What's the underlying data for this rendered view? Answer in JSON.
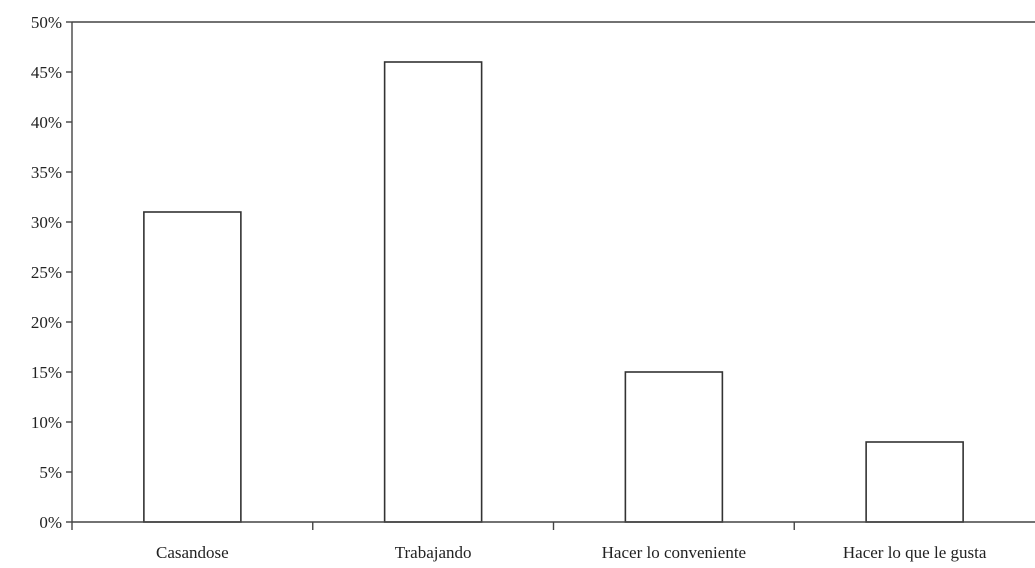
{
  "chart_data": {
    "type": "bar",
    "categories": [
      "Casandose",
      "Trabajando",
      "Hacer lo conveniente",
      "Hacer lo que le gusta"
    ],
    "values": [
      31,
      46,
      15,
      8
    ],
    "ylim": [
      0,
      50
    ],
    "yticks": [
      "0%",
      "5%",
      "10%",
      "15%",
      "20%",
      "25%",
      "30%",
      "35%",
      "40%",
      "45%",
      "50%"
    ],
    "grid": false,
    "legend": "none",
    "colors": {
      "bar_fill": "#ffffff",
      "bar_stroke": "#333333",
      "axis": "#444444",
      "text": "#222222"
    }
  }
}
